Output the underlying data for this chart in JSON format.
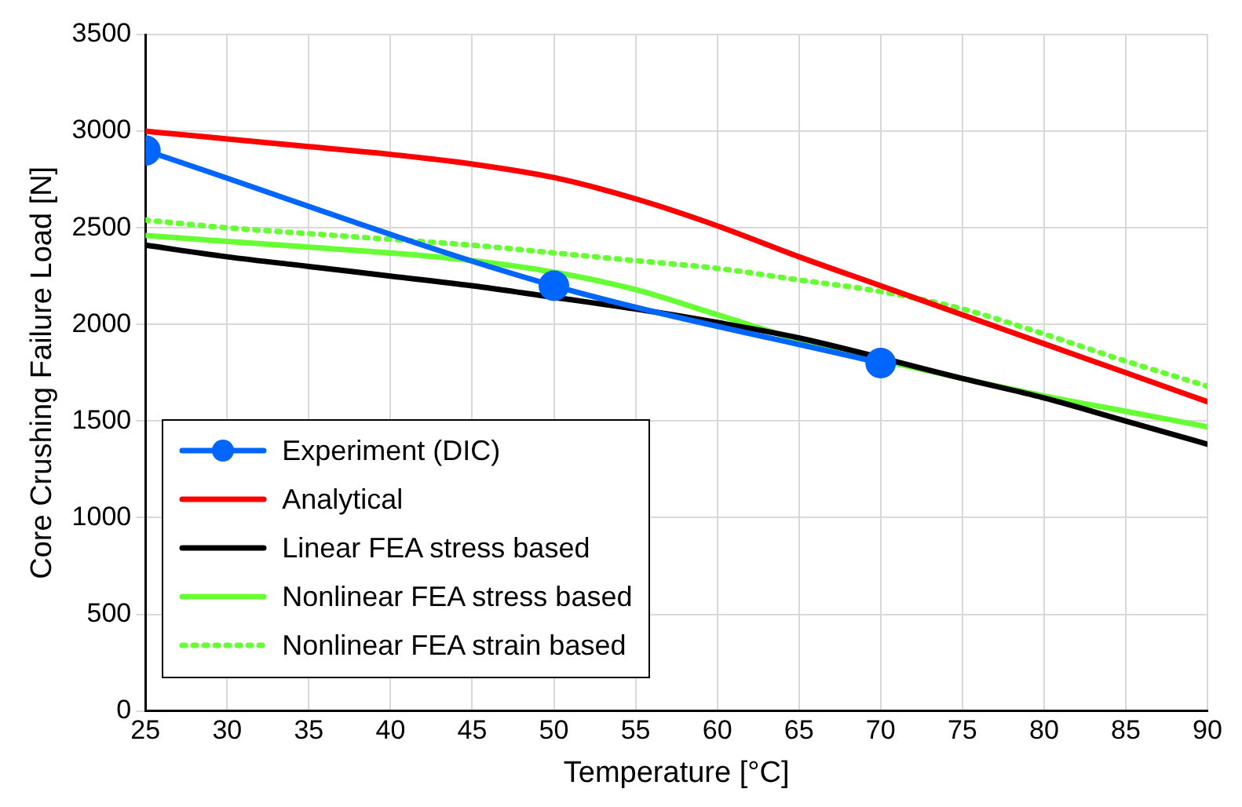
{
  "chart_data": {
    "type": "line",
    "xlabel": "Temperature [°C]",
    "ylabel": "Core Crushing Failure Load [N]",
    "x": [
      25,
      30,
      35,
      40,
      45,
      50,
      55,
      60,
      65,
      70,
      75,
      80,
      85,
      90
    ],
    "xlim": [
      25,
      90
    ],
    "xticks": [
      25,
      30,
      35,
      40,
      45,
      50,
      55,
      60,
      65,
      70,
      75,
      80,
      85,
      90
    ],
    "ylim": [
      0,
      3500
    ],
    "yticks": [
      0,
      500,
      1000,
      1500,
      2000,
      2500,
      3000,
      3500
    ],
    "grid": true,
    "legend": "bottom left",
    "marker": "none",
    "line_style": "solid",
    "series": [
      {
        "name": "Experiment (DIC)",
        "color": "#0066ff",
        "x": [
          25,
          50,
          70
        ],
        "values": [
          2900,
          2200,
          1800
        ],
        "marker": "circle"
      },
      {
        "name": "Analytical",
        "color": "#ff0000",
        "values": [
          3000,
          2960,
          2920,
          2880,
          2830,
          2760,
          2650,
          2510,
          2350,
          2200,
          2050,
          1900,
          1750,
          1600
        ]
      },
      {
        "name": "Linear FEA stress based",
        "color": "#000000",
        "values": [
          2410,
          2350,
          2300,
          2250,
          2200,
          2140,
          2080,
          2010,
          1930,
          null,
          1720,
          1620,
          1500,
          1380
        ]
      },
      {
        "name": "Nonlinear FEA stress based",
        "color": "#66ff33",
        "values": [
          2460,
          2430,
          2400,
          2370,
          2330,
          2270,
          2180,
          2050,
          1920,
          null,
          1720,
          1630,
          1550,
          1470
        ]
      },
      {
        "name": "Nonlinear FEA strain based",
        "color": "#66ff33",
        "line_style": "dotted",
        "values": [
          2540,
          2500,
          2470,
          2440,
          2410,
          2370,
          2330,
          2290,
          2230,
          2170,
          2080,
          1950,
          1810,
          1680
        ]
      }
    ]
  }
}
